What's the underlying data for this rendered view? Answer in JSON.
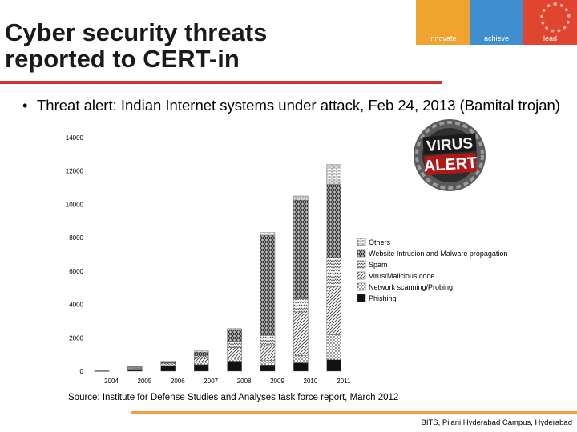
{
  "slide": {
    "title_line1": "Cyber security threats",
    "title_line2": "reported to CERT-in",
    "bullet_marker": "•",
    "bullet": "Threat alert: Indian Internet systems under attack, Feb 24, 2013 (Bamital trojan)",
    "source": "Source: Institute for Defense Studies and Analyses  task force report, March 2012",
    "footer": "BITS, Pilani Hyderabad Campus, Hyderabad",
    "accent_color": "#d2342c",
    "footer_rule_color": "#f0a040"
  },
  "logo": {
    "segments": [
      {
        "label": "innovate",
        "color": "#f0a32e"
      },
      {
        "label": "achieve",
        "color": "#3f8fd0"
      },
      {
        "label": "lead",
        "color": "#e0452f"
      }
    ]
  },
  "virus_badge": {
    "word1": "VIRUS",
    "word2": "ALERT"
  },
  "chart_data": {
    "type": "bar",
    "stacked": true,
    "title": "",
    "xlabel": "",
    "ylabel": "",
    "categories": [
      "2004",
      "2005",
      "2006",
      "2007",
      "2008",
      "2009",
      "2010",
      "2011"
    ],
    "ylim": [
      0,
      14000
    ],
    "yticks": [
      0,
      2000,
      4000,
      6000,
      8000,
      10000,
      12000,
      14000
    ],
    "legend_position": "right",
    "series": [
      {
        "name": "Phishing",
        "pattern": "solid",
        "values": [
          3,
          100,
          340,
          390,
          600,
          370,
          500,
          680
        ]
      },
      {
        "name": "Network scanning/Probing",
        "pattern": "dots",
        "values": [
          10,
          40,
          100,
          180,
          200,
          270,
          450,
          1500
        ]
      },
      {
        "name": "Virus/Malicious code",
        "pattern": "diagonal",
        "values": [
          5,
          40,
          50,
          200,
          600,
          900,
          2600,
          2900
        ]
      },
      {
        "name": "Spam",
        "pattern": "zigzag",
        "values": [
          0,
          40,
          20,
          150,
          400,
          600,
          800,
          1700
        ]
      },
      {
        "name": "Website Intrusion and Malware propagation",
        "pattern": "crosshatch",
        "values": [
          5,
          30,
          50,
          230,
          700,
          6000,
          5900,
          4400
        ]
      },
      {
        "name": "Others",
        "pattern": "brick",
        "values": [
          0,
          20,
          40,
          60,
          50,
          170,
          250,
          1200
        ]
      }
    ]
  }
}
